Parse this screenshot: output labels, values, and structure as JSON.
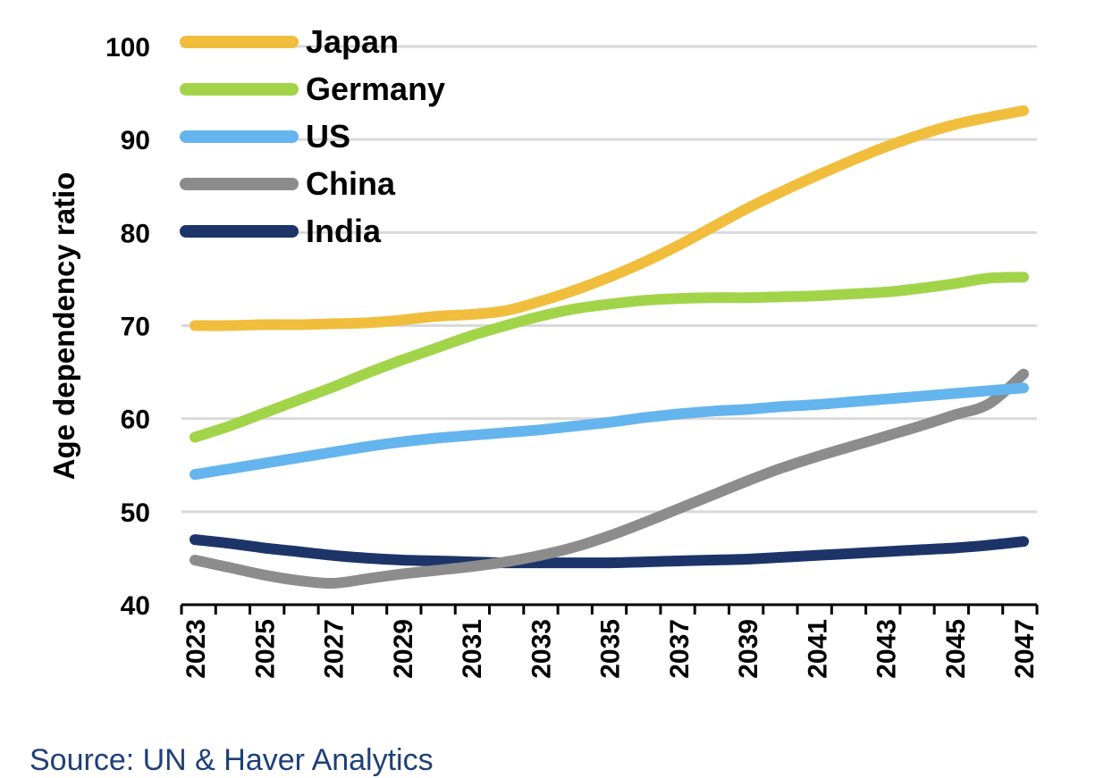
{
  "chart_data": {
    "type": "line",
    "title": "",
    "xlabel": "",
    "ylabel": "Age dependency ratio",
    "ylim": [
      40,
      100
    ],
    "yticks": [
      40,
      50,
      60,
      70,
      80,
      90,
      100
    ],
    "xlim": [
      2023,
      2047
    ],
    "x": [
      2023,
      2024,
      2025,
      2026,
      2027,
      2028,
      2029,
      2030,
      2031,
      2032,
      2033,
      2034,
      2035,
      2036,
      2037,
      2038,
      2039,
      2040,
      2041,
      2042,
      2043,
      2044,
      2045,
      2046,
      2047
    ],
    "xtick_labels": [
      "2023",
      "2025",
      "2027",
      "2029",
      "2031",
      "2033",
      "2035",
      "2037",
      "2039",
      "2041",
      "2043",
      "2045",
      "2047"
    ],
    "grid": true,
    "legend": "top-left",
    "series": [
      {
        "name": "Japan",
        "color": "#F0BE3C",
        "values": [
          70.0,
          70.0,
          70.1,
          70.1,
          70.2,
          70.3,
          70.6,
          71.0,
          71.2,
          71.6,
          72.6,
          73.8,
          75.2,
          76.8,
          78.6,
          80.6,
          82.6,
          84.4,
          86.1,
          87.7,
          89.2,
          90.5,
          91.6,
          92.4,
          93.1
        ]
      },
      {
        "name": "Germany",
        "color": "#A2D44A",
        "values": [
          58.0,
          59.2,
          60.6,
          62.0,
          63.4,
          64.9,
          66.3,
          67.6,
          68.9,
          70.0,
          71.0,
          71.8,
          72.3,
          72.7,
          72.9,
          73.0,
          73.0,
          73.1,
          73.2,
          73.4,
          73.6,
          74.0,
          74.5,
          75.1,
          75.2
        ]
      },
      {
        "name": "US",
        "color": "#64B4EE",
        "values": [
          54.0,
          54.6,
          55.2,
          55.8,
          56.4,
          57.0,
          57.5,
          57.9,
          58.2,
          58.5,
          58.8,
          59.2,
          59.6,
          60.1,
          60.5,
          60.8,
          61.0,
          61.3,
          61.5,
          61.8,
          62.1,
          62.4,
          62.7,
          63.0,
          63.3
        ]
      },
      {
        "name": "China",
        "color": "#8C8C8C",
        "values": [
          44.8,
          44.0,
          43.2,
          42.6,
          42.3,
          42.8,
          43.3,
          43.7,
          44.1,
          44.6,
          45.3,
          46.2,
          47.4,
          48.8,
          50.3,
          51.8,
          53.3,
          54.7,
          55.9,
          57.0,
          58.1,
          59.2,
          60.4,
          61.6,
          64.8
        ]
      },
      {
        "name": "India",
        "color": "#1C3468",
        "values": [
          47.0,
          46.6,
          46.1,
          45.7,
          45.3,
          45.0,
          44.8,
          44.7,
          44.6,
          44.5,
          44.5,
          44.5,
          44.5,
          44.6,
          44.7,
          44.8,
          44.9,
          45.1,
          45.3,
          45.5,
          45.7,
          45.9,
          46.1,
          46.4,
          46.8
        ]
      }
    ]
  },
  "source_text": "Source: UN & Haver Analytics"
}
